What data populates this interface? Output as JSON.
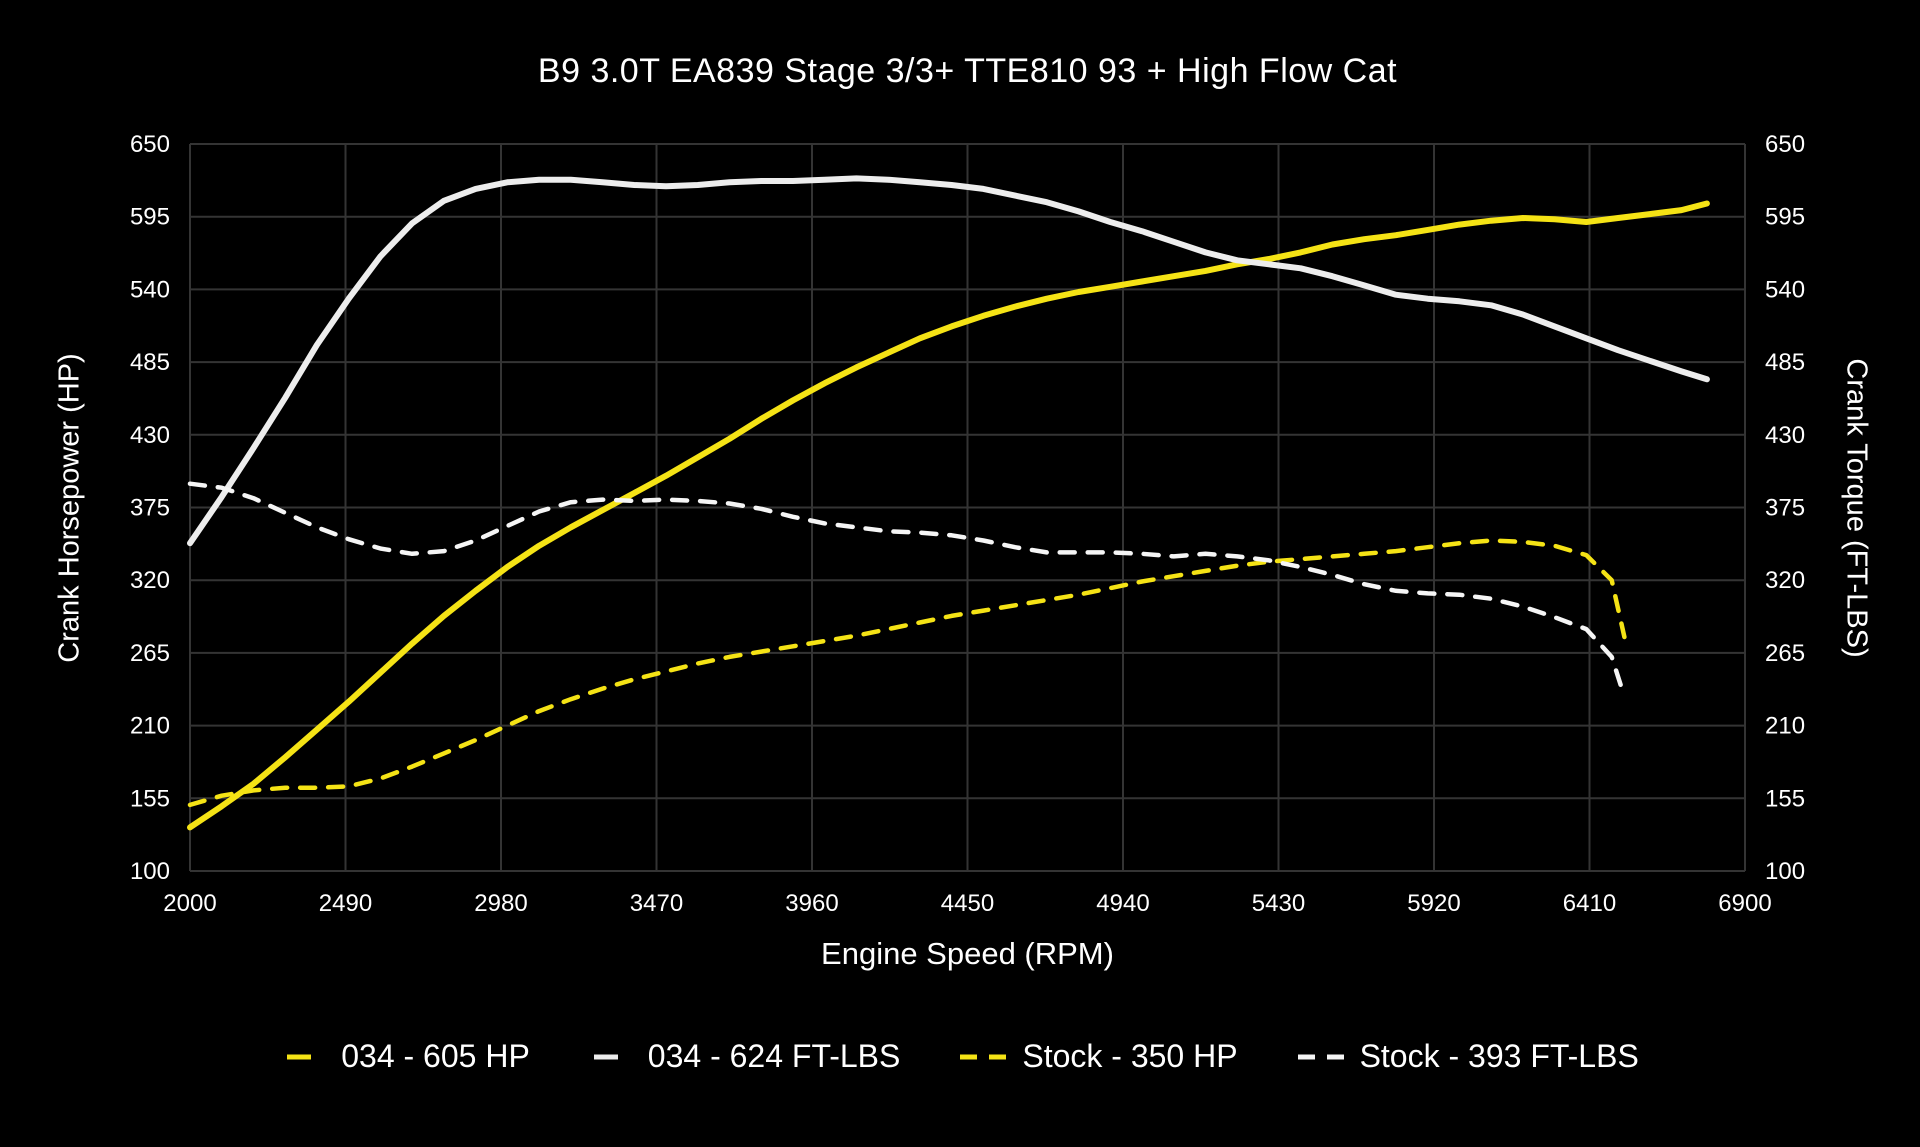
{
  "chart_data": {
    "type": "line",
    "title": "B9 3.0T EA839 Stage 3/3+ TTE810 93 + High Flow Cat",
    "xlabel": "Engine Speed (RPM)",
    "ylabel_left": "Crank Horsepower (HP)",
    "ylabel_right": "Crank Torque (FT-LBS)",
    "xlim": [
      2000,
      6900
    ],
    "ylim": [
      100,
      650
    ],
    "x_ticks": [
      2000,
      2490,
      2980,
      3470,
      3960,
      4450,
      4940,
      5430,
      5920,
      6410,
      6900
    ],
    "y_ticks": [
      100,
      155,
      210,
      265,
      320,
      375,
      430,
      485,
      540,
      595,
      650
    ],
    "grid": true,
    "grid_color": "#343434",
    "background": "#000000",
    "tick_color": "#ffffff",
    "legend_position": "bottom",
    "series": [
      {
        "name": "034 - 605 HP",
        "color": "#f5e315",
        "style": "solid",
        "width": 6,
        "axis": "left",
        "x": [
          2000,
          2100,
          2200,
          2300,
          2400,
          2500,
          2600,
          2700,
          2800,
          2900,
          3000,
          3100,
          3200,
          3300,
          3400,
          3500,
          3600,
          3700,
          3800,
          3900,
          4000,
          4100,
          4200,
          4300,
          4400,
          4500,
          4600,
          4700,
          4800,
          4900,
          5000,
          5100,
          5200,
          5300,
          5400,
          5500,
          5600,
          5700,
          5800,
          5900,
          6000,
          6100,
          6200,
          6300,
          6400,
          6500,
          6600,
          6700,
          6780
        ],
        "y": [
          133,
          149,
          166,
          186,
          207,
          228,
          250,
          272,
          293,
          312,
          330,
          346,
          360,
          373,
          386,
          399,
          413,
          427,
          442,
          456,
          469,
          481,
          492,
          503,
          512,
          520,
          527,
          533,
          538,
          542,
          546,
          550,
          554,
          559,
          563,
          568,
          574,
          578,
          581,
          585,
          589,
          592,
          594,
          593,
          591,
          594,
          597,
          600,
          605
        ]
      },
      {
        "name": "034 - 624 FT-LBS",
        "color": "#ededed",
        "style": "solid",
        "width": 6,
        "axis": "right",
        "x": [
          2000,
          2100,
          2200,
          2300,
          2400,
          2500,
          2600,
          2700,
          2800,
          2900,
          3000,
          3100,
          3200,
          3300,
          3400,
          3500,
          3600,
          3700,
          3800,
          3900,
          4000,
          4100,
          4200,
          4300,
          4400,
          4500,
          4600,
          4700,
          4800,
          4900,
          5000,
          5100,
          5200,
          5300,
          5400,
          5500,
          5600,
          5700,
          5800,
          5900,
          6000,
          6100,
          6200,
          6300,
          6400,
          6500,
          6600,
          6700,
          6780
        ],
        "y": [
          348,
          383,
          420,
          458,
          498,
          533,
          565,
          590,
          607,
          616,
          621,
          623,
          623,
          621,
          619,
          618,
          619,
          621,
          622,
          622,
          623,
          624,
          623,
          621,
          619,
          616,
          611,
          606,
          599,
          591,
          584,
          576,
          568,
          562,
          559,
          556,
          550,
          543,
          536,
          533,
          531,
          528,
          521,
          512,
          503,
          494,
          486,
          478,
          472
        ]
      },
      {
        "name": "Stock - 350 HP",
        "color": "#f5e315",
        "style": "dashed",
        "width": 4.5,
        "axis": "left",
        "x": [
          2000,
          2100,
          2200,
          2300,
          2400,
          2500,
          2600,
          2700,
          2800,
          2900,
          3000,
          3100,
          3200,
          3300,
          3400,
          3500,
          3600,
          3700,
          3800,
          3900,
          4000,
          4100,
          4200,
          4300,
          4400,
          4500,
          4600,
          4700,
          4800,
          4900,
          5000,
          5100,
          5200,
          5300,
          5400,
          5500,
          5600,
          5700,
          5800,
          5900,
          6000,
          6100,
          6200,
          6300,
          6400,
          6480,
          6520
        ],
        "y": [
          150,
          157,
          161,
          163,
          163,
          164,
          170,
          179,
          189,
          199,
          210,
          221,
          230,
          238,
          245,
          251,
          257,
          262,
          266,
          270,
          274,
          278,
          283,
          288,
          293,
          297,
          301,
          305,
          309,
          314,
          319,
          323,
          327,
          331,
          334,
          336,
          338,
          340,
          342,
          345,
          348,
          350,
          349,
          346,
          339,
          320,
          277
        ]
      },
      {
        "name": "Stock - 393 FT-LBS",
        "color": "#f5f5f5",
        "style": "dashed",
        "width": 4.5,
        "axis": "right",
        "x": [
          2000,
          2100,
          2200,
          2300,
          2400,
          2500,
          2600,
          2700,
          2800,
          2900,
          3000,
          3100,
          3200,
          3300,
          3400,
          3500,
          3600,
          3700,
          3800,
          3900,
          4000,
          4100,
          4200,
          4300,
          4400,
          4500,
          4600,
          4700,
          4800,
          4900,
          5000,
          5100,
          5200,
          5300,
          5400,
          5500,
          5600,
          5700,
          5800,
          5900,
          6000,
          6100,
          6200,
          6300,
          6400,
          6480,
          6520
        ],
        "y": [
          393,
          390,
          382,
          371,
          360,
          351,
          344,
          340,
          342,
          350,
          361,
          372,
          379,
          381,
          380,
          381,
          380,
          378,
          374,
          368,
          363,
          360,
          357,
          356,
          354,
          350,
          345,
          341,
          341,
          341,
          340,
          338,
          340,
          338,
          335,
          330,
          324,
          317,
          312,
          310,
          309,
          306,
          300,
          292,
          283,
          262,
          232
        ]
      }
    ]
  }
}
